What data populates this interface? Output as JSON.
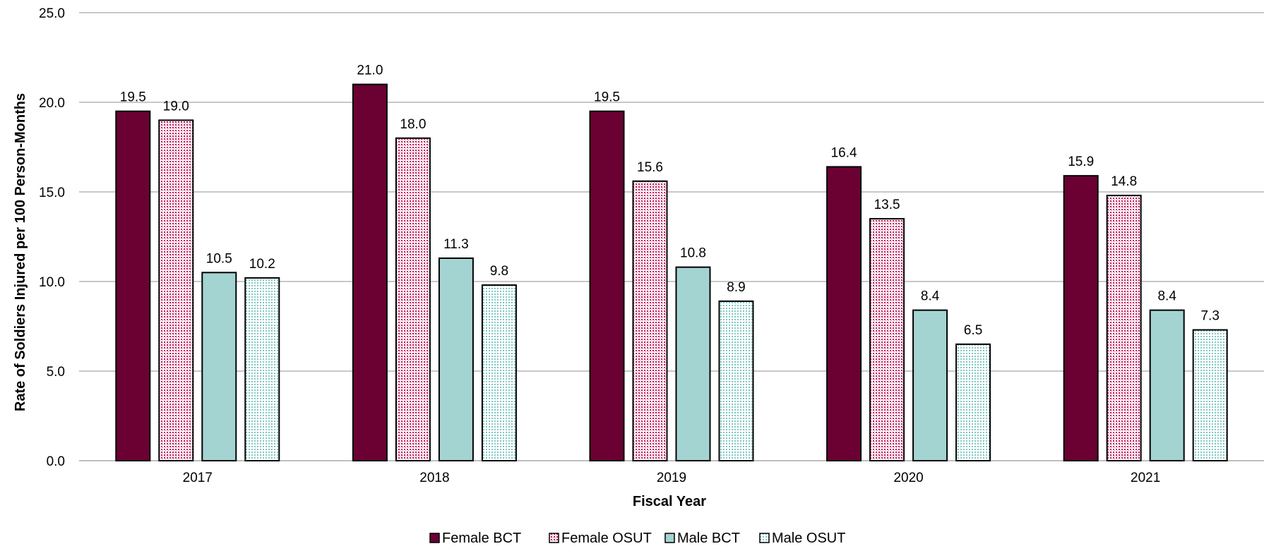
{
  "chart_data": {
    "type": "bar",
    "categories": [
      "2017",
      "2018",
      "2019",
      "2020",
      "2021"
    ],
    "series": [
      {
        "name": "Female BCT",
        "values": [
          19.5,
          21.0,
          19.5,
          16.4,
          15.9
        ],
        "color": "#6b0033",
        "pattern": "solid"
      },
      {
        "name": "Female OSUT",
        "values": [
          19.0,
          18.0,
          15.6,
          13.5,
          14.8
        ],
        "color": "#c2185b",
        "pattern": "dotted"
      },
      {
        "name": "Male BCT",
        "values": [
          10.5,
          11.3,
          10.8,
          8.4,
          8.4
        ],
        "color": "#a3d4d1",
        "pattern": "solid"
      },
      {
        "name": "Male OSUT",
        "values": [
          10.2,
          9.8,
          8.9,
          6.5,
          7.3
        ],
        "color": "#7fc8c4",
        "pattern": "dotted"
      }
    ],
    "title": "",
    "xlabel": "Fiscal Year",
    "ylabel": "Rate of Soldiers Injured per 100 Person-Months",
    "ylim": [
      0,
      25
    ],
    "yticks": [
      "0.0",
      "5.0",
      "10.0",
      "15.0",
      "20.0",
      "25.0"
    ],
    "grid": true,
    "legend_position": "bottom-center"
  }
}
